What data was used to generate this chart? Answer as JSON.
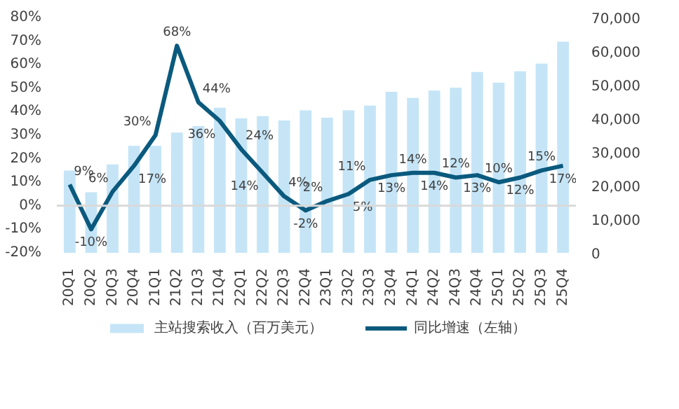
{
  "chart_data": {
    "type": "bar",
    "categories": [
      "20Q1",
      "20Q2",
      "20Q3",
      "20Q4",
      "21Q1",
      "21Q2",
      "21Q3",
      "21Q4",
      "22Q1",
      "22Q2",
      "22Q3",
      "22Q4",
      "23Q1",
      "23Q2",
      "23Q3",
      "23Q4",
      "24Q1",
      "24Q2",
      "24Q3",
      "24Q4",
      "25Q1",
      "25Q2",
      "25Q3",
      "25Q4"
    ],
    "series": [
      {
        "name": "主站搜索收入（百万美元）",
        "axis": "y2",
        "color": "#c5e5f7",
        "values": [
          24500,
          18000,
          26300,
          31800,
          31800,
          35800,
          37700,
          43200,
          40000,
          40700,
          39400,
          42400,
          40200,
          42400,
          43800,
          47900,
          46100,
          48300,
          49100,
          53800,
          50600,
          54000,
          56300,
          62800
        ]
      },
      {
        "name": "同比增速（左轴）",
        "type": "line",
        "color": "#0b5a7e",
        "values": [
          9,
          -10,
          6,
          17,
          30,
          68,
          44,
          36,
          24,
          14,
          4,
          -2,
          2,
          5,
          11,
          13,
          14,
          14,
          12,
          13,
          10,
          12,
          15,
          17
        ],
        "value_labels": [
          "9%",
          "-10%",
          "6%",
          "17%",
          "30%",
          "68%",
          "44%",
          "36%",
          "24%",
          "14%",
          "4%",
          "-2%",
          "2%",
          "5%",
          "11%",
          "13%",
          "14%",
          "14%",
          "12%",
          "13%",
          "10%",
          "12%",
          "15%",
          "17%"
        ]
      }
    ],
    "ylim": [
      -20,
      80
    ],
    "yticks": [
      {
        "value": -20,
        "label": "-20%"
      },
      {
        "value": -10,
        "label": "-10%"
      },
      {
        "value": 0,
        "label": "0%"
      },
      {
        "value": 10,
        "label": "10%"
      },
      {
        "value": 20,
        "label": "20%"
      },
      {
        "value": 30,
        "label": "30%"
      },
      {
        "value": 40,
        "label": "40%"
      },
      {
        "value": 50,
        "label": "50%"
      },
      {
        "value": 60,
        "label": "60%"
      },
      {
        "value": 70,
        "label": "70%"
      },
      {
        "value": 80,
        "label": "80%"
      }
    ],
    "y2lim": [
      0,
      70000
    ],
    "y2ticks": [
      0,
      {
        "value": 10000,
        "label": "10,000"
      },
      {
        "value": 20000,
        "label": "20,000"
      },
      {
        "value": 30000,
        "label": "30,000"
      },
      {
        "value": 40000,
        "label": "40,000"
      },
      {
        "value": 50000,
        "label": "50,000"
      },
      {
        "value": 60000,
        "label": "60,000"
      },
      {
        "value": 70000,
        "label": "70,000"
      }
    ],
    "ref_lines": [
      {
        "axis": "y",
        "value": 0,
        "color": "#d9d9d9"
      }
    ],
    "grid": false,
    "legend": "bottom",
    "marker": "none",
    "line_style": "solid"
  }
}
